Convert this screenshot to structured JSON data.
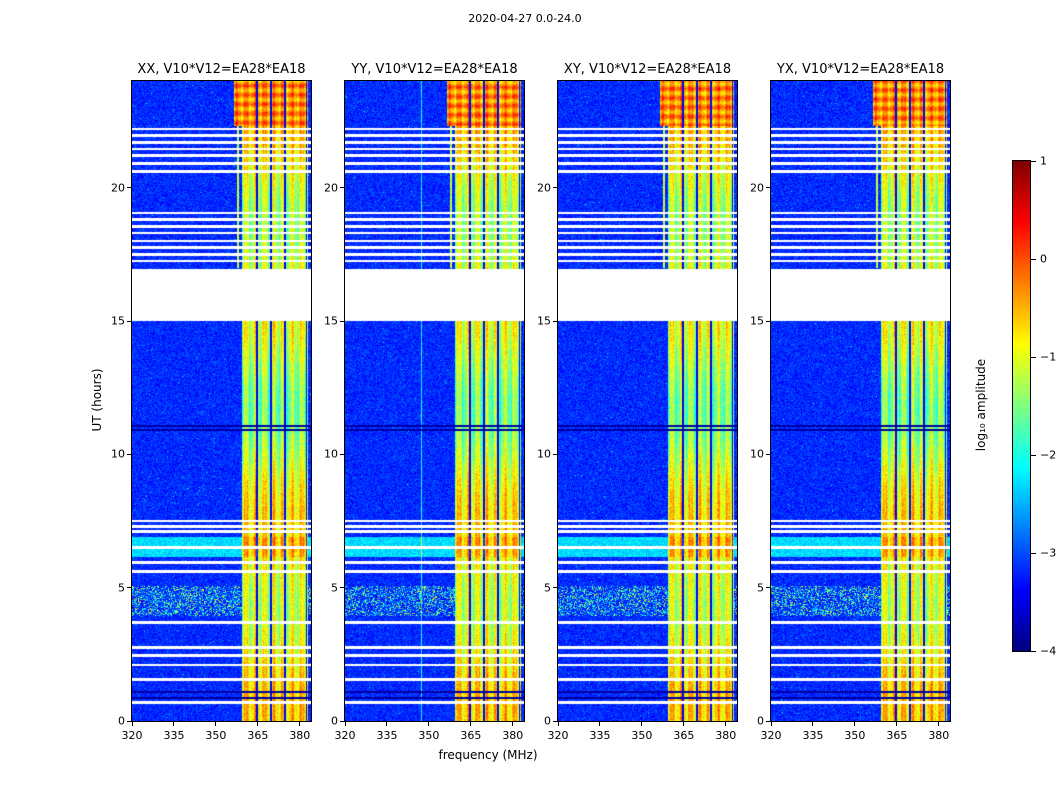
{
  "figure": {
    "suptitle": "2020-04-27 0.0-24.0",
    "xlabel": "frequency (MHz)",
    "ylabel": "UT (hours)",
    "colorbar_label": "log₁₀ amplitude"
  },
  "panels": [
    {
      "code": "XX",
      "title": "XX, V10*V12=EA28*EA18"
    },
    {
      "code": "YY",
      "title": "YY, V10*V12=EA28*EA18"
    },
    {
      "code": "XY",
      "title": "XY, V10*V12=EA28*EA18"
    },
    {
      "code": "YX",
      "title": "YX, V10*V12=EA28*EA18"
    }
  ],
  "axes": {
    "x_ticks": [
      320,
      335,
      350,
      365,
      380
    ],
    "y_ticks": [
      0,
      5,
      10,
      15,
      20
    ]
  },
  "colorbar": {
    "ticks": [
      1,
      0,
      -1,
      -2,
      -3,
      -4
    ],
    "tick_labels": [
      "1",
      "0",
      "−1",
      "−2",
      "−3",
      "−4"
    ]
  },
  "chart_data": {
    "type": "heatmap",
    "title": "2020-04-27 0.0-24.0",
    "xlabel": "frequency (MHz)",
    "ylabel": "UT (hours)",
    "xlim": [
      320,
      384
    ],
    "ylim": [
      0,
      24
    ],
    "colormap": "jet",
    "clim": [
      -4,
      1
    ],
    "colorbar_label": "log₁₀ amplitude",
    "panels": [
      "XX, V10*V12=EA28*EA18",
      "YY, V10*V12=EA28*EA18",
      "XY, V10*V12=EA28*EA18",
      "YX, V10*V12=EA28*EA18"
    ],
    "features": {
      "background_level_log10": -3.3,
      "rfi_band_mhz": [
        359.5,
        383
      ],
      "rfi_band_level_log10": -1.0,
      "rfi_dark_columns_mhz": [
        364.7,
        369.8,
        374.8,
        382.4
      ],
      "strong_rfi_interval_hours": [
        22.3,
        24.0
      ],
      "strong_rfi_level_log10": -0.3,
      "data_gaps_hours": [
        [
          15.0,
          16.95
        ]
      ],
      "white_lines_hours": [
        0.7,
        1.55,
        2.1,
        2.45,
        2.75,
        3.7,
        5.6,
        5.95,
        6.5,
        7.1,
        7.3,
        7.5,
        17.25,
        17.5,
        17.75,
        18.0,
        18.3,
        18.55,
        18.8,
        19.05,
        20.6,
        20.9,
        21.2,
        21.45,
        21.7,
        21.95,
        22.2
      ],
      "dark_lines_hours": [
        0.85,
        1.1,
        10.9,
        11.05
      ],
      "cyan_interval_hours": [
        6.15,
        6.9
      ],
      "speckle_interval_hours": [
        3.95,
        5.05
      ],
      "narrow_line_mhz": 357.9,
      "panel_faint_vlines_mhz": {
        "YY": [
          347.5
        ]
      }
    }
  }
}
